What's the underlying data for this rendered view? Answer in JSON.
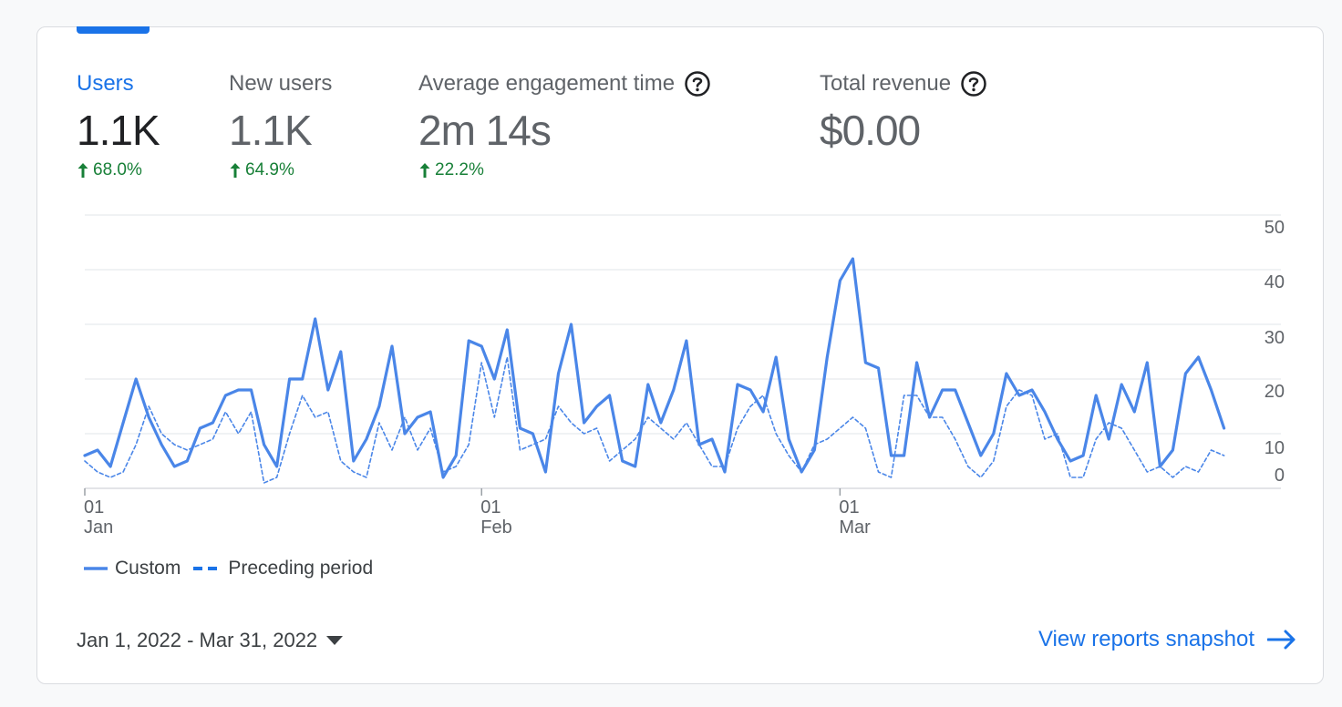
{
  "metrics": [
    {
      "label": "Users",
      "value": "1.1K",
      "change": "68.0%",
      "active": true,
      "help": false
    },
    {
      "label": "New users",
      "value": "1.1K",
      "change": "64.9%",
      "active": false,
      "help": false
    },
    {
      "label": "Average engagement time",
      "value": "2m 14s",
      "change": "22.2%",
      "active": false,
      "help": true
    },
    {
      "label": "Total revenue",
      "value": "$0.00",
      "change": "",
      "active": false,
      "help": true
    }
  ],
  "legend": {
    "custom": "Custom",
    "preceding": "Preceding period"
  },
  "footer": {
    "date_range": "Jan 1, 2022 - Mar 31, 2022",
    "link": "View reports snapshot"
  },
  "colors": {
    "accent": "#1a73e8",
    "line": "#4a86e8",
    "positive": "#188038"
  },
  "chart_data": {
    "type": "line",
    "ylim": [
      0,
      50
    ],
    "y_ticks": [
      "0",
      "10",
      "20",
      "30",
      "40",
      "50"
    ],
    "x_ticks": [
      {
        "day": 1,
        "label_top": "01",
        "label_bottom": "Jan"
      },
      {
        "day": 32,
        "label_top": "01",
        "label_bottom": "Feb"
      },
      {
        "day": 60,
        "label_top": "01",
        "label_bottom": "Mar"
      }
    ],
    "series": [
      {
        "name": "Custom",
        "style": "solid",
        "values": [
          6,
          7,
          4,
          12,
          20,
          13,
          8,
          4,
          5,
          11,
          12,
          17,
          18,
          18,
          8,
          4,
          20,
          20,
          31,
          18,
          25,
          5,
          9,
          15,
          26,
          10,
          13,
          14,
          2,
          6,
          27,
          26,
          20,
          29,
          11,
          10,
          3,
          21,
          30,
          12,
          15,
          17,
          5,
          4,
          19,
          12,
          18,
          27,
          8,
          9,
          3,
          19,
          18,
          14,
          24,
          9,
          3,
          7,
          24,
          38,
          42,
          23,
          22,
          6,
          6,
          23,
          13,
          18,
          18,
          12,
          6,
          10,
          21,
          17,
          18,
          14,
          9,
          5,
          6,
          17,
          9,
          19,
          14,
          23,
          4,
          7,
          21,
          24,
          18,
          11
        ]
      },
      {
        "name": "Preceding period",
        "style": "dashed",
        "values": [
          5,
          3,
          2,
          3,
          8,
          15,
          10,
          8,
          7,
          8,
          9,
          14,
          10,
          14,
          1,
          2,
          10,
          17,
          13,
          14,
          5,
          3,
          2,
          12,
          7,
          13,
          7,
          11,
          3,
          4,
          8,
          23,
          13,
          24,
          7,
          8,
          9,
          15,
          12,
          10,
          11,
          5,
          7,
          9,
          13,
          11,
          9,
          12,
          8,
          4,
          4,
          11,
          15,
          17,
          10,
          6,
          3,
          8,
          9,
          11,
          13,
          11,
          3,
          2,
          17,
          17,
          13,
          13,
          9,
          4,
          2,
          5,
          15,
          18,
          17,
          9,
          10,
          2,
          2,
          9,
          12,
          11,
          7,
          3,
          4,
          2,
          4,
          3,
          7,
          6
        ]
      }
    ]
  }
}
